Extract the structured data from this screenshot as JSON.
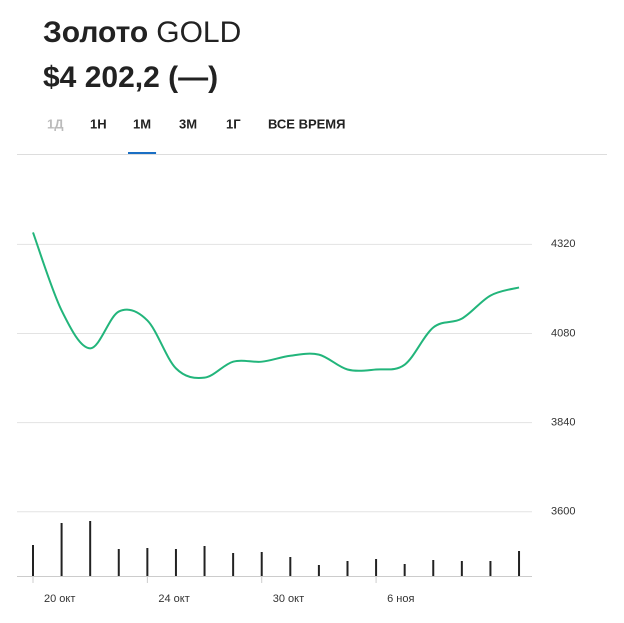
{
  "header": {
    "title": "Золото",
    "ticker": "GOLD",
    "price": "$4 202,2 (—)"
  },
  "tabs": {
    "items": [
      "1Д",
      "1Н",
      "1М",
      "3М",
      "1Г",
      "ВСЕ ВРЕМЯ"
    ],
    "active": 2,
    "disabled": 0
  },
  "chart_data": {
    "type": "line",
    "categories": [
      "20 окт",
      null,
      null,
      null,
      "24 окт",
      null,
      null,
      null,
      "30 окт",
      null,
      null,
      null,
      "6 ноя",
      null,
      null,
      null,
      null,
      null
    ],
    "series": [
      {
        "name": "GOLD",
        "color": "#22b57b",
        "values": [
          4352,
          4142,
          4040,
          4139,
          4115,
          3986,
          3961,
          4004,
          4004,
          4020,
          4023,
          3983,
          3983,
          3996,
          4096,
          4120,
          4182,
          4204
        ]
      },
      {
        "name": "Volume",
        "color": "#222222",
        "axis": "y2",
        "type": "bar",
        "values": [
          31,
          53,
          55,
          27,
          28,
          27,
          30,
          23,
          24,
          19,
          11,
          15,
          17,
          12,
          16,
          15,
          15,
          25
        ]
      }
    ],
    "ylim": [
      3427,
      4547
    ],
    "yticks": [
      3600,
      3840,
      4080,
      4320
    ],
    "y2lim": [
      0,
      60
    ],
    "grid": true
  }
}
